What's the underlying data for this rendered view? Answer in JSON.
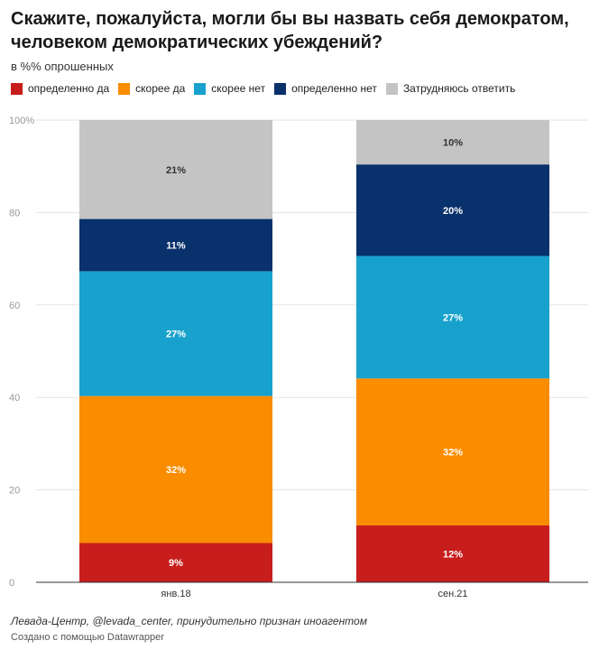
{
  "title": "Скажите, пожалуйста, могли бы вы назвать себя демократом, человеком демократических убеждений?",
  "subtitle": "в %% опрошенных",
  "legend": [
    {
      "label": "определенно да",
      "color": "#c71e1d"
    },
    {
      "label": "скорее да",
      "color": "#fa8c00"
    },
    {
      "label": "скорее нет",
      "color": "#18a1cd"
    },
    {
      "label": "определенно нет",
      "color": "#09316b"
    },
    {
      "label": "Затрудняюсь ответить",
      "color": "#c4c4c4"
    }
  ],
  "chart_data": {
    "type": "bar",
    "stacked": true,
    "title": "Скажите, пожалуйста, могли бы вы назвать себя демократом, человеком демократических убеждений?",
    "ylabel": "",
    "xlabel": "",
    "ylim": [
      0,
      100
    ],
    "yticks": [
      "0",
      "20",
      "40",
      "60",
      "80",
      "100%"
    ],
    "grid": true,
    "legend_position": "top-left",
    "categories": [
      "янв.18",
      "сен.21"
    ],
    "series": [
      {
        "name": "определенно да",
        "color": "#c71e1d",
        "values": [
          8.5,
          12.3
        ],
        "labels": [
          "9%",
          "12%"
        ]
      },
      {
        "name": "скорее да",
        "color": "#fa8c00",
        "values": [
          31.8,
          31.8
        ],
        "labels": [
          "32%",
          "32%"
        ]
      },
      {
        "name": "скорее нет",
        "color": "#18a1cd",
        "values": [
          27,
          26.5
        ],
        "labels": [
          "27%",
          "27%"
        ]
      },
      {
        "name": "определенно нет",
        "color": "#09316b",
        "values": [
          11.3,
          19.8
        ],
        "labels": [
          "11%",
          "20%"
        ]
      },
      {
        "name": "Затрудняюсь ответить",
        "color": "#c4c4c4",
        "values": [
          21.4,
          9.6
        ],
        "labels": [
          "21%",
          "10%"
        ]
      }
    ]
  },
  "footer": {
    "source": "Левада-Центр, @levada_center, принудительно признан иноагентом",
    "credit": "Создано с помощью Datawrapper"
  }
}
